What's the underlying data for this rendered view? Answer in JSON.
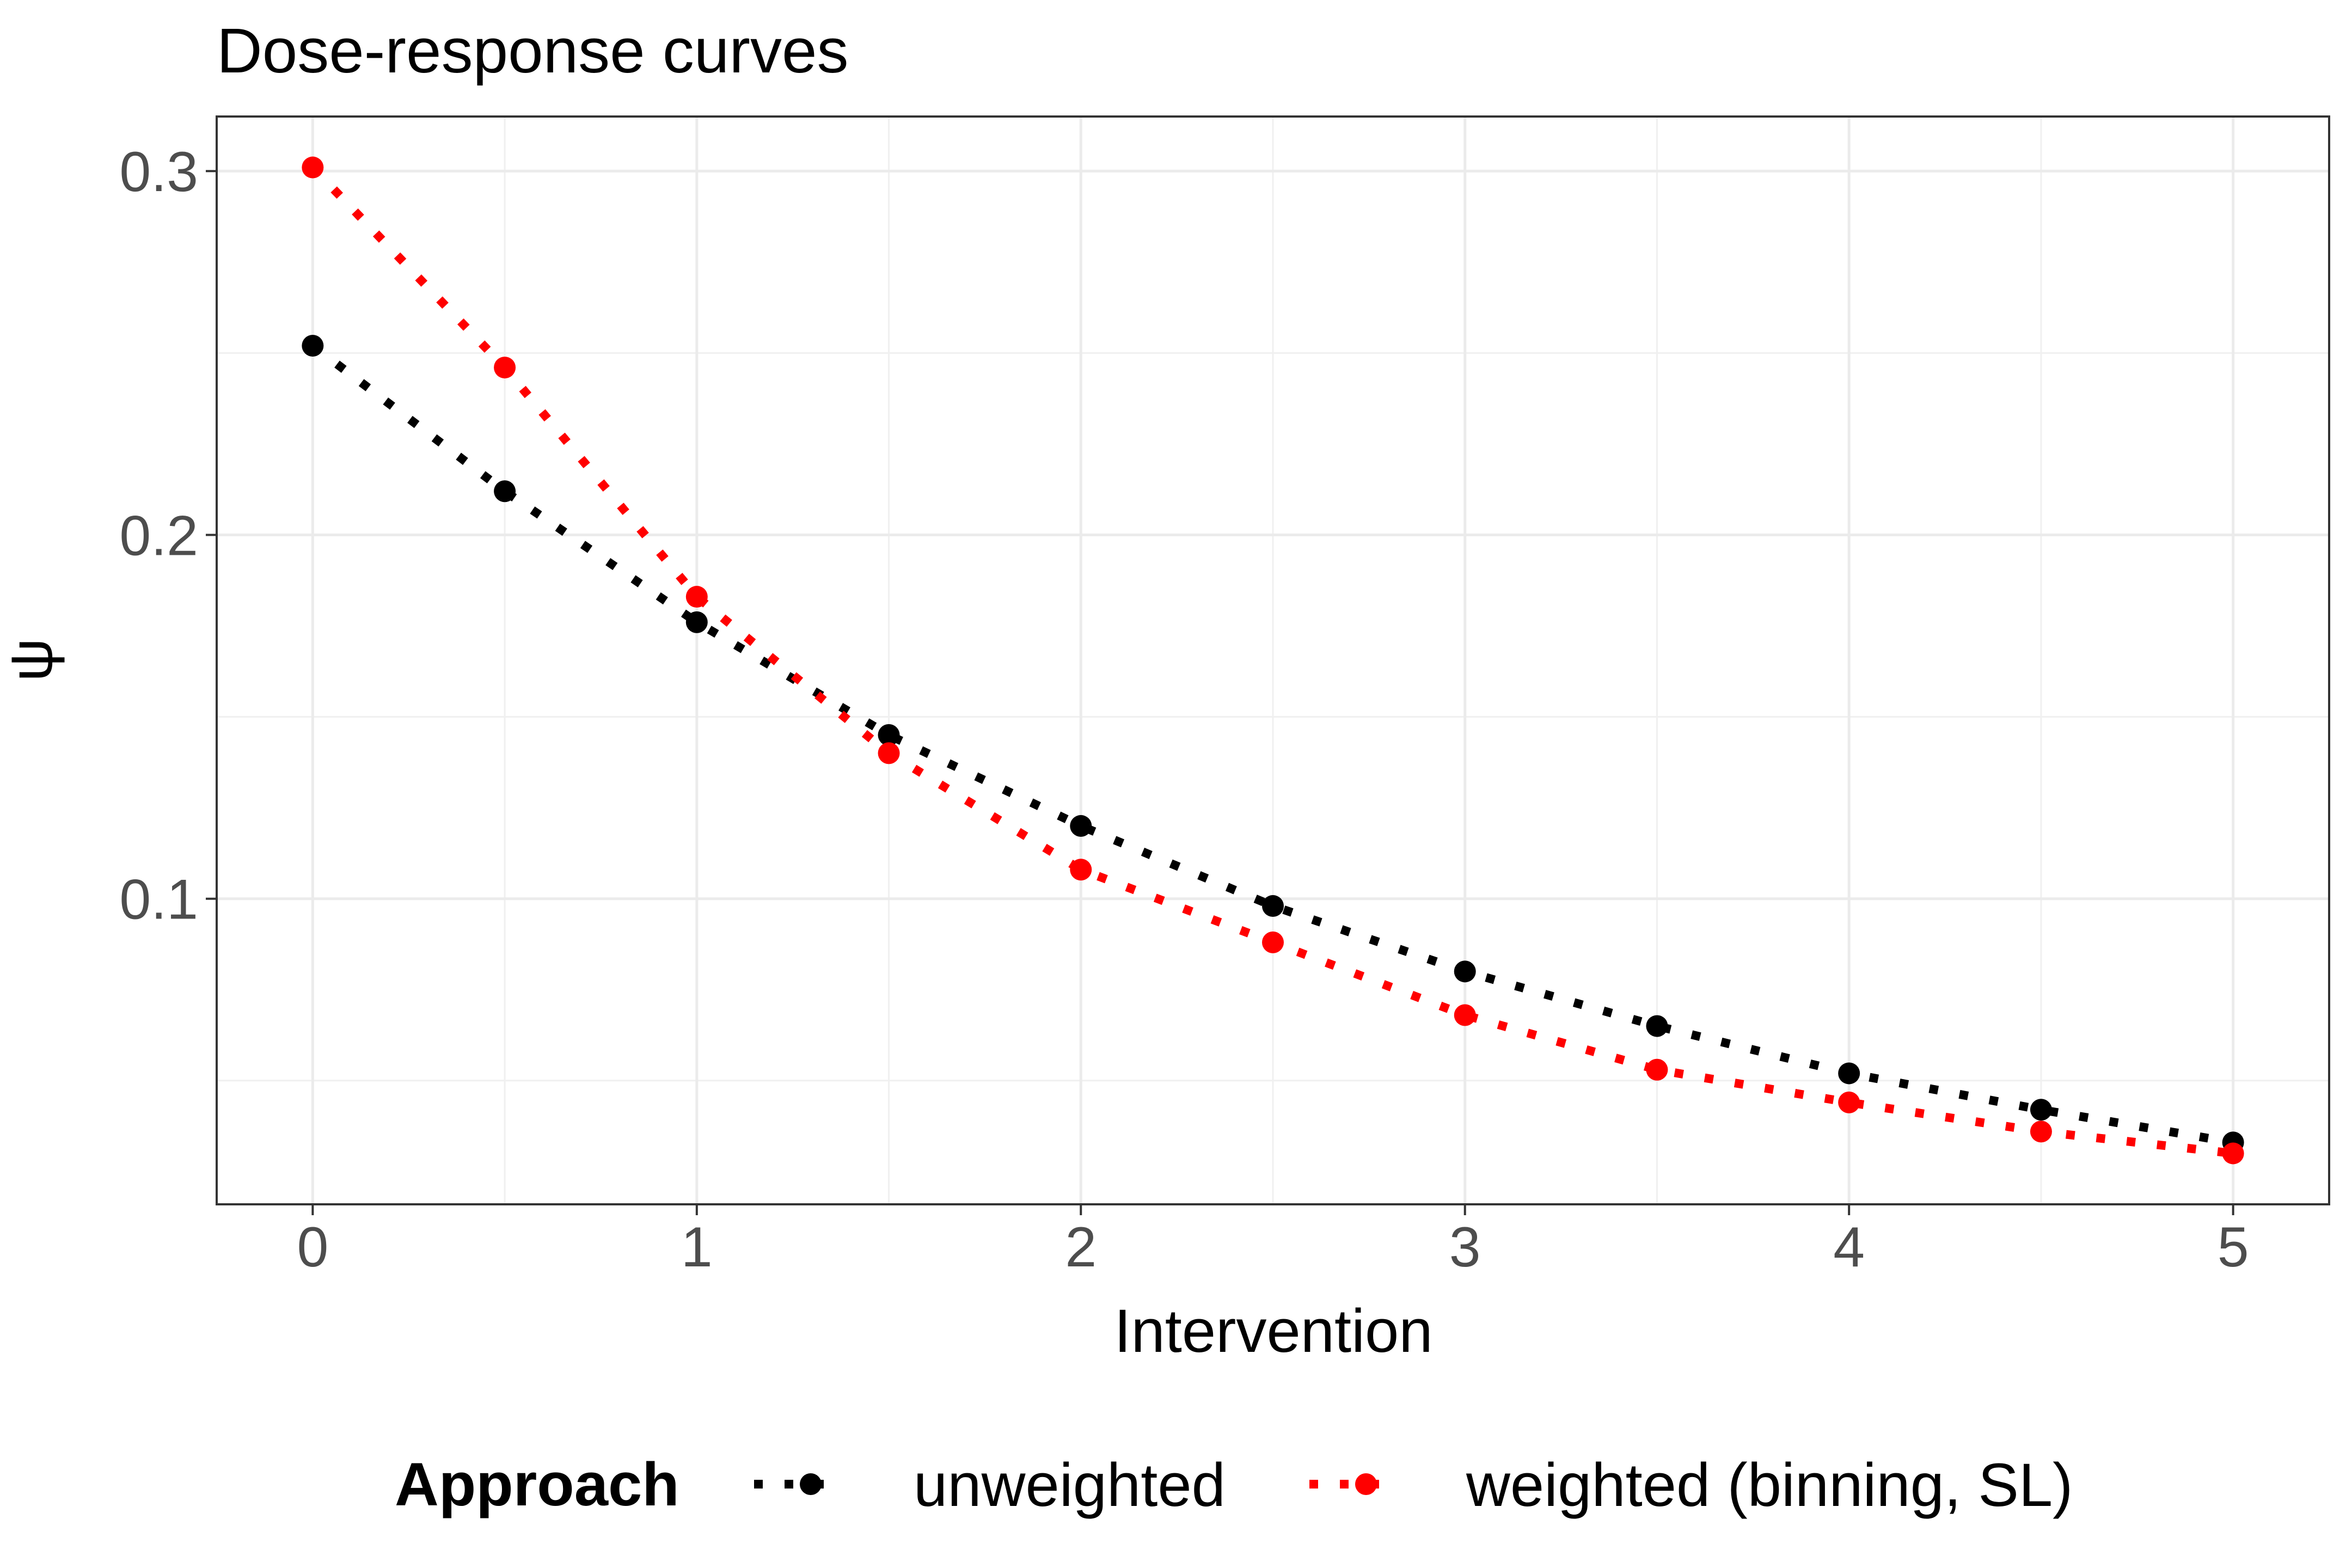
{
  "chart_data": {
    "type": "line",
    "title": "Dose-response curves",
    "xlabel": "Intervention",
    "ylabel": "ψ",
    "xlim": [
      -0.25,
      5.25
    ],
    "ylim": [
      0.016,
      0.315
    ],
    "x_ticks": [
      0,
      1,
      2,
      3,
      4,
      5
    ],
    "x_tick_labels": [
      "0",
      "1",
      "2",
      "3",
      "4",
      "5"
    ],
    "y_ticks": [
      0.1,
      0.2,
      0.3
    ],
    "y_tick_labels": [
      "0.1",
      "0.2",
      "0.3"
    ],
    "y_minor_ticks": [
      0.05,
      0.15,
      0.25
    ],
    "grid": true,
    "legend": {
      "title": "Approach",
      "position": "bottom"
    },
    "x": [
      0,
      0.5,
      1,
      1.5,
      2,
      2.5,
      3,
      3.5,
      4,
      4.5,
      5
    ],
    "series": [
      {
        "name": "unweighted",
        "color": "#000000",
        "line_style": "dotted",
        "values": [
          0.252,
          0.212,
          0.176,
          0.145,
          0.12,
          0.098,
          0.08,
          0.065,
          0.052,
          0.042,
          0.033
        ]
      },
      {
        "name": "weighted (binning, SL)",
        "color": "#ff0000",
        "line_style": "dotted",
        "values": [
          0.301,
          0.246,
          0.183,
          0.14,
          0.108,
          0.088,
          0.068,
          0.053,
          0.044,
          0.036,
          0.03
        ]
      }
    ]
  }
}
